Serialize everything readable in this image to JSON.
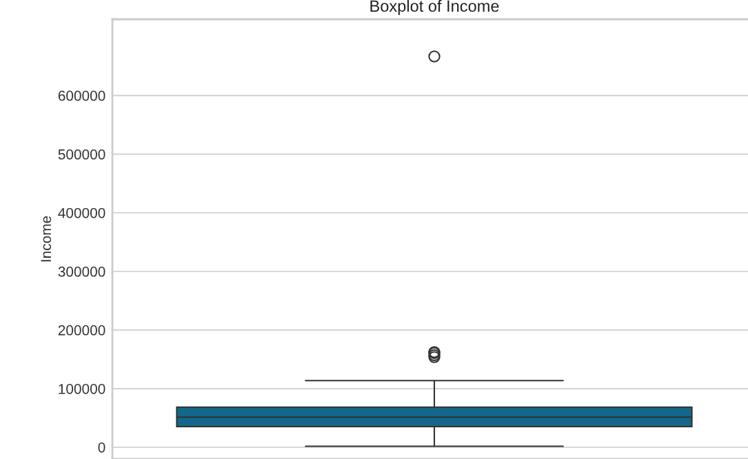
{
  "chart_data": {
    "type": "box",
    "title": "Boxplot of Income",
    "ylabel": "Income",
    "categories": [
      null
    ],
    "boxes": [
      {
        "low": 1730,
        "q1": 35300,
        "median": 51400,
        "q3": 68500,
        "high": 113700,
        "outliers": [
          153900,
          157200,
          160800,
          162400,
          666666
        ]
      }
    ],
    "color": "#13678a",
    "ylim": [
      -20000,
      730000
    ],
    "yticks": [
      0,
      100000,
      200000,
      300000,
      400000,
      500000,
      600000
    ],
    "grid": "y"
  }
}
